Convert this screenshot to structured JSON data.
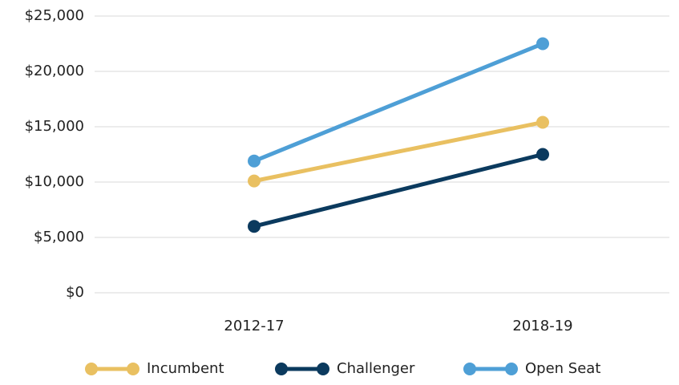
{
  "chart_data": {
    "type": "line",
    "categories": [
      "2012-17",
      "2018-19"
    ],
    "series": [
      {
        "name": "Incumbent",
        "color": "#e9c061",
        "values": [
          10100,
          15400
        ]
      },
      {
        "name": "Challenger",
        "color": "#0b3a5e",
        "values": [
          6000,
          12500
        ]
      },
      {
        "name": "Open Seat",
        "color": "#4e9fd6",
        "values": [
          11900,
          22500
        ]
      }
    ],
    "ylim": [
      0,
      25000
    ],
    "yticks": [
      {
        "value": 0,
        "label": "$0"
      },
      {
        "value": 5000,
        "label": "$5,000"
      },
      {
        "value": 10000,
        "label": "$10,000"
      },
      {
        "value": 15000,
        "label": "$15,000"
      },
      {
        "value": 20000,
        "label": "$20,000"
      },
      {
        "value": 25000,
        "label": "$25,000"
      }
    ],
    "grid": true,
    "legend": "bottom"
  }
}
